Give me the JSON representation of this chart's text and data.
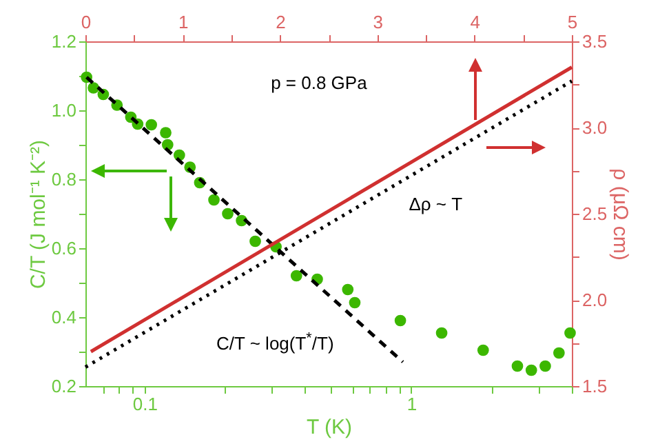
{
  "chart_data": {
    "type": "scatter",
    "xlabel": "T (K)",
    "ylabel": "C/T (J mol⁻¹ K⁻²)",
    "y2label": "ρ (μΩ cm)",
    "log": "x",
    "grid": false,
    "xlim": [
      0.06,
      4
    ],
    "xticks": [
      {
        "value": 0.07,
        "label": null
      },
      {
        "value": 0.08,
        "label": null
      },
      {
        "value": 0.09,
        "label": null
      },
      0.1,
      {
        "value": 0.2,
        "label": null
      },
      {
        "value": 0.3,
        "label": null
      },
      {
        "value": 0.4,
        "label": null
      },
      {
        "value": 0.5,
        "label": null
      },
      {
        "value": 0.6,
        "label": null
      },
      {
        "value": 0.7,
        "label": null
      },
      {
        "value": 0.8,
        "label": null
      },
      {
        "value": 0.9,
        "label": null
      },
      1,
      {
        "value": 2,
        "label": null
      },
      {
        "value": 3,
        "label": null
      },
      {
        "value": 4,
        "label": null
      }
    ],
    "ylim": [
      0.2,
      1.2
    ],
    "yticks": [
      0.2,
      {
        "value": 0.3,
        "label": null
      },
      0.4,
      {
        "value": 0.5,
        "label": null
      },
      0.6,
      {
        "value": 0.7,
        "label": null
      },
      0.8,
      {
        "value": 0.9,
        "label": null
      },
      {
        "value": 1,
        "label": "1.0"
      },
      {
        "value": 1.1,
        "label": null
      },
      1.2
    ],
    "x2lim": [
      0,
      5
    ],
    "x2ticks": [
      0,
      {
        "value": 0.5,
        "label": null
      },
      1,
      {
        "value": 1.5,
        "label": null
      },
      2,
      {
        "value": 2.5,
        "label": null
      },
      3,
      {
        "value": 3.5,
        "label": null
      },
      4,
      {
        "value": 4.5,
        "label": null
      },
      5
    ],
    "y2lim": [
      1.5,
      3.5
    ],
    "y2ticks": [
      1.5,
      {
        "value": 1.75,
        "label": null
      },
      {
        "value": 2,
        "label": "2.0"
      },
      {
        "value": 2.25,
        "label": null
      },
      2.5,
      {
        "value": 2.75,
        "label": null
      },
      {
        "value": 3,
        "label": "3.0"
      },
      {
        "value": 3.25,
        "label": null
      },
      3.5
    ],
    "series": [
      {
        "marker": "circle",
        "color": "#3cb700",
        "x": [
          0.0606,
          0.0643,
          0.07,
          0.0788,
          0.0888,
          0.0942,
          0.106,
          0.12,
          0.122,
          0.135,
          0.148,
          0.161,
          0.182,
          0.205,
          0.231,
          0.26,
          0.311,
          0.371,
          0.444,
          0.578,
          0.614,
          0.91,
          1.3,
          1.86,
          2.5,
          2.82,
          3.18,
          3.58,
          3.94
        ],
        "values": [
          1.096,
          1.065,
          1.046,
          1.015,
          0.98,
          0.96,
          0.958,
          0.935,
          0.9,
          0.87,
          0.835,
          0.79,
          0.74,
          0.7,
          0.68,
          0.62,
          0.604,
          0.52,
          0.51,
          0.48,
          0.442,
          0.39,
          0.354,
          0.304,
          0.258,
          0.246,
          0.258,
          0.296,
          0.354
        ]
      },
      {
        "type": "line",
        "line_style": "dashed",
        "color": "#000000",
        "x": [
          0.0606,
          0.93
        ],
        "values": [
          1.096,
          0.27
        ]
      },
      {
        "type": "line",
        "line_style": "solid",
        "axis": "y2",
        "color": "#d03030",
        "x": [
          0.0629,
          4
        ],
        "values": [
          1.7,
          3.35
        ]
      },
      {
        "type": "line",
        "line_style": "dotted",
        "axis": "y2",
        "color": "#000000",
        "x": [
          0.06,
          4
        ],
        "values": [
          1.61,
          3.27
        ]
      }
    ],
    "annotations": [
      "p = 0.8 GPa",
      "Δρ ~ T",
      "C/T ~ log(T$^{*}$/T)"
    ]
  }
}
